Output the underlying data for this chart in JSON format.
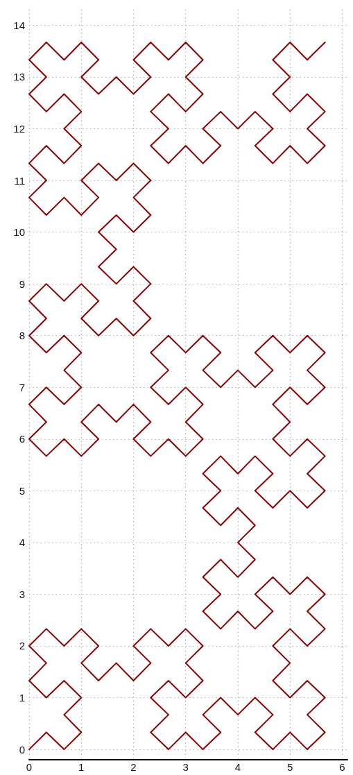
{
  "chart_data": {
    "type": "line",
    "color": "#8b0000",
    "grid": true,
    "xlim": [
      0,
      6.1
    ],
    "ylim": [
      -0.2,
      14.3
    ],
    "xticks": [
      0,
      1,
      2,
      3,
      4,
      5,
      6
    ],
    "yticks": [
      0,
      1,
      2,
      3,
      4,
      5,
      6,
      7,
      8,
      9,
      10,
      11,
      12,
      13,
      14
    ],
    "x": [
      0,
      0.33,
      0.67,
      1,
      0.67,
      1,
      0.67,
      0.33,
      0,
      0.33,
      0,
      0.33,
      0.67,
      1,
      1.33,
      1,
      1.33,
      1.67,
      2,
      2.33,
      2,
      2.33,
      2.67,
      3,
      3.33,
      3,
      3.33,
      3,
      2.67,
      2.33,
      2.67,
      2.33,
      2.67,
      3,
      3.33,
      3.67,
      3.33,
      3.67,
      4,
      4.33,
      4.67,
      4.33,
      4.67,
      5,
      5.33,
      5.67,
      5.33,
      5.67,
      5.33,
      5,
      4.67,
      5,
      4.67,
      5,
      5.33,
      5.67,
      5.33,
      5.67,
      5.33,
      5,
      4.67,
      4.33,
      4.67,
      4.33,
      4,
      3.67,
      3.33,
      3.67,
      3.33,
      3.67,
      4,
      4.33,
      4,
      4.33,
      4,
      3.67,
      3.33,
      3.67,
      3.33,
      3.67,
      4,
      4.33,
      4.67,
      4.33,
      4.67,
      5,
      5.33,
      5.67,
      5.33,
      5.67,
      5.33,
      5,
      4.67,
      5,
      4.67,
      5,
      5.33,
      5.67,
      5.33,
      5.67,
      5.33,
      5,
      4.67,
      4.33,
      4.67,
      4.33,
      4,
      3.67,
      3.33,
      3.67,
      3.33,
      3,
      2.67,
      2.33,
      2.67,
      2.33,
      2.67,
      3,
      3.33,
      3,
      3.33,
      3,
      2.67,
      2.33,
      2,
      2.33,
      2,
      1.67,
      1.33,
      1,
      1.33,
      1,
      0.67,
      0.33,
      0,
      0.33,
      0,
      0.33,
      0.67,
      1,
      0.67,
      1,
      0.67,
      0.33,
      0,
      0.33,
      0,
      0.33,
      0.67,
      1,
      1.33,
      1,
      1.33,
      1.67,
      2,
      2.33,
      2,
      2.33,
      2,
      1.67,
      1.33,
      1.67,
      1.33,
      1.67,
      2,
      2.33,
      2,
      2.33,
      2,
      1.67,
      1.33,
      1,
      1.33,
      1,
      0.67,
      0.33,
      0,
      0.33,
      0,
      0.33,
      0.67,
      1,
      0.67,
      1,
      0.67,
      0.33,
      0,
      0.33,
      0,
      0.33,
      0.67,
      1,
      1.33,
      1,
      1.33,
      1.67,
      2,
      2.33,
      2,
      2.33,
      2.67,
      3,
      3.33,
      3,
      3.33,
      3,
      2.67,
      2.33,
      2.67,
      2.33,
      2.67,
      3,
      3.33,
      3.67,
      3.33,
      3.67,
      4,
      4.33,
      4.67,
      4.33,
      4.67,
      5,
      5.33,
      5.67,
      5.33,
      5.67,
      5.33,
      5,
      4.67,
      5,
      4.67,
      5,
      5.33,
      5.67
    ],
    "values": [
      0,
      0.33,
      0,
      0.33,
      0.67,
      1,
      1.33,
      1,
      1.33,
      1.67,
      2,
      2.33,
      2,
      2.33,
      2,
      1.67,
      1.33,
      1.67,
      1.33,
      1.67,
      2,
      2.33,
      2,
      2.33,
      2,
      1.67,
      1.33,
      1,
      1.33,
      1,
      0.67,
      0.33,
      0,
      0.33,
      0,
      0.33,
      0.67,
      1,
      0.67,
      1,
      0.67,
      0.33,
      0,
      0.33,
      0,
      0.33,
      0.67,
      1,
      1.33,
      1,
      1.33,
      1.67,
      2,
      2.33,
      2,
      2.33,
      2.67,
      3,
      3.33,
      3,
      3.33,
      3,
      2.67,
      2.33,
      2.67,
      2.33,
      2.67,
      3,
      3.33,
      3.67,
      3.33,
      3.67,
      4,
      4.33,
      4.67,
      4.33,
      4.67,
      5,
      5.33,
      5.67,
      5.33,
      5.67,
      5.33,
      5,
      4.67,
      5,
      4.67,
      5,
      5.33,
      5.67,
      6,
      5.67,
      6,
      6.33,
      6.67,
      7,
      6.67,
      7,
      7.33,
      7.67,
      8,
      7.67,
      8,
      7.67,
      7.33,
      7,
      7.33,
      7,
      7.33,
      7.67,
      8,
      7.67,
      8,
      7.67,
      7.33,
      7,
      6.67,
      7,
      6.67,
      6.33,
      6,
      5.67,
      6,
      5.67,
      6,
      6.33,
      6.67,
      6.33,
      6.67,
      6.33,
      6,
      5.67,
      6,
      5.67,
      6,
      6.33,
      6.67,
      7,
      6.67,
      7,
      7.33,
      7.67,
      8,
      7.67,
      8,
      8.33,
      8.67,
      9,
      8.67,
      9,
      8.67,
      8.33,
      8,
      8.33,
      8,
      8.33,
      8.67,
      9,
      9.33,
      9,
      9.33,
      9.67,
      10,
      10.33,
      10,
      10.33,
      10.67,
      11,
      11.33,
      11,
      11.33,
      11,
      10.67,
      10.33,
      10.67,
      10.33,
      10.67,
      11,
      11.33,
      11.67,
      11.33,
      11.67,
      12,
      12.33,
      12.67,
      12.33,
      12.67,
      13,
      13.33,
      13.67,
      13.33,
      13.67,
      13.33,
      13,
      12.67,
      13,
      12.67,
      13,
      13.33,
      13.67,
      13.33,
      13.67,
      13.33,
      13,
      12.67,
      12.33,
      12.67,
      12.33,
      12,
      11.67,
      11.33,
      11.67,
      11.33,
      11.67,
      12,
      12.33,
      12,
      12.33,
      12,
      11.67,
      11.33,
      11.67,
      11.33,
      11.67,
      12,
      12.33,
      12.67,
      12.33,
      12.67,
      13,
      13.33,
      13.67,
      13.33,
      13.67
    ]
  }
}
